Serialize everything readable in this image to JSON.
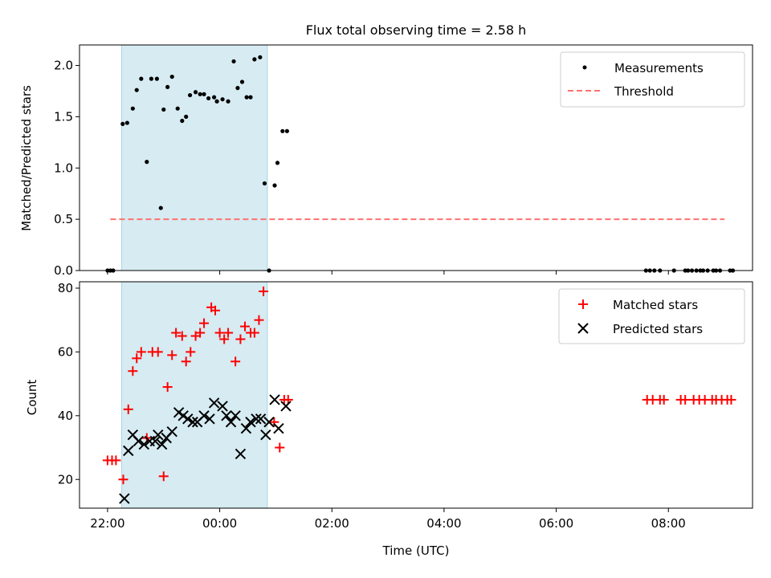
{
  "chart_data": [
    {
      "type": "scatter",
      "title": "Flux total observing time = 2.58 h",
      "xlabel": "",
      "ylabel": "Matched/Predicted stars",
      "xlim": [
        -0.5,
        11.5
      ],
      "ylim": [
        0,
        2.2
      ],
      "yticks": [
        0.0,
        0.5,
        1.0,
        1.5,
        2.0
      ],
      "ytick_labels": [
        "0.0",
        "0.5",
        "1.0",
        "1.5",
        "2.0"
      ],
      "shaded_span": [
        0.25,
        2.85
      ],
      "legend": {
        "placement": "top-right",
        "entries": [
          "Measurements",
          "Threshold"
        ]
      },
      "series": [
        {
          "name": "Measurements",
          "marker": "dot",
          "color": "#000000",
          "x": [
            0.0,
            0.05,
            0.1,
            0.27,
            0.35,
            0.45,
            0.52,
            0.6,
            0.7,
            0.78,
            0.88,
            0.95,
            1.0,
            1.07,
            1.15,
            1.25,
            1.33,
            1.4,
            1.47,
            1.57,
            1.65,
            1.72,
            1.8,
            1.9,
            1.95,
            2.05,
            2.15,
            2.25,
            2.32,
            2.4,
            2.48,
            2.55,
            2.62,
            2.72,
            2.8,
            2.88,
            2.98,
            3.03,
            3.12,
            3.2,
            9.6,
            9.67,
            9.75,
            9.85,
            10.1,
            10.3,
            10.35,
            10.42,
            10.5,
            10.57,
            10.62,
            10.7,
            10.8,
            10.85,
            10.92,
            11.1,
            11.15
          ],
          "y": [
            0.0,
            0.0,
            0.0,
            1.43,
            1.44,
            1.58,
            1.76,
            1.87,
            1.06,
            1.87,
            1.87,
            0.61,
            1.57,
            1.79,
            1.89,
            1.58,
            1.46,
            1.5,
            1.71,
            1.74,
            1.72,
            1.72,
            1.68,
            1.69,
            1.65,
            1.67,
            1.65,
            2.04,
            1.78,
            1.84,
            1.69,
            1.69,
            2.06,
            2.08,
            0.85,
            0.0,
            0.83,
            1.05,
            1.36,
            1.36,
            0.0,
            0.0,
            0.0,
            0.0,
            0.0,
            0.0,
            0.0,
            0.0,
            0.0,
            0.0,
            0.0,
            0.0,
            0.0,
            0.0,
            0.0,
            0.0,
            0.0
          ]
        },
        {
          "name": "Threshold",
          "marker": "dashed-line",
          "color": "#ff7070",
          "x": [
            0.05,
            11.0
          ],
          "y": [
            0.5,
            0.5
          ]
        }
      ]
    },
    {
      "type": "scatter",
      "title": "",
      "xlabel": "Time (UTC)",
      "ylabel": "Count",
      "xlim": [
        -0.5,
        11.5
      ],
      "ylim": [
        11,
        82
      ],
      "yticks": [
        20,
        40,
        60,
        80
      ],
      "ytick_labels": [
        "20",
        "40",
        "60",
        "80"
      ],
      "xticks": [
        0,
        2,
        4,
        6,
        8,
        10
      ],
      "xtick_labels": [
        "22:00",
        "00:00",
        "02:00",
        "04:00",
        "06:00",
        "08:00"
      ],
      "shaded_span": [
        0.25,
        2.85
      ],
      "legend": {
        "placement": "top-right",
        "entries": [
          "Matched stars",
          "Predicted stars"
        ]
      },
      "series": [
        {
          "name": "Matched stars",
          "marker": "plus",
          "color": "#ff0000",
          "x": [
            0.0,
            0.08,
            0.15,
            0.28,
            0.37,
            0.45,
            0.52,
            0.6,
            0.7,
            0.8,
            0.9,
            1.0,
            1.07,
            1.15,
            1.22,
            1.33,
            1.4,
            1.48,
            1.57,
            1.65,
            1.72,
            1.85,
            1.92,
            2.0,
            2.08,
            2.15,
            2.28,
            2.37,
            2.45,
            2.55,
            2.62,
            2.7,
            2.78,
            2.97,
            3.07,
            3.15,
            3.22,
            9.62,
            9.72,
            9.85,
            9.92,
            10.22,
            10.3,
            10.45,
            10.55,
            10.65,
            10.78,
            10.85,
            10.95,
            11.05,
            11.12
          ],
          "y": [
            26,
            26,
            26,
            20,
            42,
            54,
            58,
            60,
            33,
            60,
            60,
            21,
            49,
            59,
            66,
            65,
            57,
            60,
            65,
            66,
            69,
            74,
            73,
            66,
            64,
            66,
            57,
            64,
            68,
            66,
            66,
            70,
            79,
            38,
            30,
            45,
            45,
            45,
            45,
            45,
            45,
            45,
            45,
            45,
            45,
            45,
            45,
            45,
            45,
            45,
            45
          ]
        },
        {
          "name": "Predicted stars",
          "marker": "x",
          "color": "#000000",
          "x": [
            0.3,
            0.37,
            0.45,
            0.55,
            0.65,
            0.75,
            0.85,
            0.9,
            0.97,
            1.05,
            1.15,
            1.27,
            1.35,
            1.43,
            1.52,
            1.6,
            1.72,
            1.82,
            1.9,
            2.05,
            2.12,
            2.2,
            2.28,
            2.37,
            2.47,
            2.55,
            2.65,
            2.73,
            2.82,
            2.88,
            2.98,
            3.05,
            3.18
          ],
          "y": [
            14,
            29,
            34,
            32,
            31,
            32,
            32,
            34,
            31,
            33,
            35,
            41,
            40,
            39,
            38,
            38,
            40,
            39,
            44,
            43,
            40,
            38,
            40,
            28,
            36,
            38,
            39,
            39,
            34,
            38,
            45,
            36,
            43
          ]
        }
      ]
    }
  ]
}
